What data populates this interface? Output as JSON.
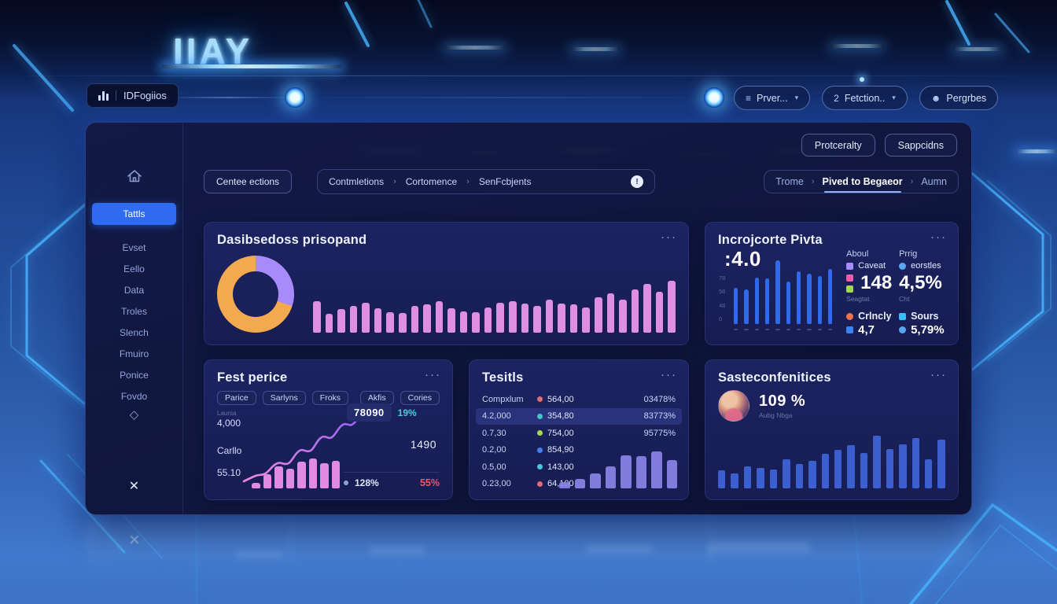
{
  "colors": {
    "accent_blue": "#2e6bf0",
    "neon_cyan": "#7fd4ff",
    "bar_pink": "#df8fe2",
    "bar_blue": "#2f6be8",
    "bar_indigo": "#3c5fd0",
    "bar_lavender": "#8b83e8",
    "donut_orange": "#f3a950",
    "donut_purple": "#a78bfa",
    "teal": "#49ccd8",
    "red": "#f0566c"
  },
  "icons": {
    "dots": "···",
    "chevron": "▾",
    "separator": "›",
    "info": "!",
    "close": "✕",
    "diamond": "◇",
    "list": "≡",
    "user": "☻",
    "num2": "2"
  },
  "scene": {
    "logo": "IIAY"
  },
  "topbar": {
    "app_button": "IDFogiios",
    "actions": [
      {
        "label": "Prver...",
        "icon": "list",
        "chevron": true
      },
      {
        "label": "Fetction..",
        "icon": "num2",
        "chevron": true
      },
      {
        "label": "Pergrbes",
        "icon": "user",
        "chevron": false
      }
    ]
  },
  "panel": {
    "header_buttons": [
      "Protceralty",
      "Sappcidns"
    ],
    "sidebar": {
      "items": [
        "Tattls",
        "Evset",
        "Eello",
        "Data",
        "Troles",
        "Slench",
        "Fmuiro",
        "Ponice",
        "Fovdo"
      ],
      "active_index": 0
    },
    "toolbar": {
      "primary_button": "Centee ections",
      "breadcrumb": [
        "Contmletions",
        "Cortomence",
        "SenFcbjents"
      ],
      "tabs": [
        "Trome",
        "Pived to Begaeor",
        "Aumn"
      ],
      "active_tab": 1
    }
  },
  "cards": {
    "main": {
      "title": "Dasibsedoss prisopand",
      "chart_data": {
        "type": "bar",
        "values": [
          40,
          24,
          30,
          34,
          38,
          31,
          26,
          25,
          34,
          36,
          40,
          31,
          27,
          26,
          32,
          38,
          40,
          37,
          34,
          42,
          37,
          36,
          32,
          45,
          50,
          42,
          55,
          62,
          52,
          66
        ],
        "bar_color": "#df8fe2",
        "donut": {
          "type": "pie",
          "segments": [
            {
              "label": "segment-orange",
              "value": 70,
              "color": "#f3a950"
            },
            {
              "label": "segment-purple",
              "value": 30,
              "color": "#a78bfa"
            }
          ]
        }
      }
    },
    "pivta": {
      "title": "Incrojcorte Pivta",
      "big_value": ":4.0",
      "chart_data": {
        "type": "bar",
        "values": [
          52,
          50,
          67,
          66,
          92,
          61,
          76,
          73,
          69,
          80
        ],
        "bar_color": "#2f6be8",
        "y_ticks": [
          "78",
          "58",
          "48",
          "0"
        ]
      },
      "stats": {
        "col1_header": "Aboul",
        "col1_legend": [
          {
            "color": "#a78bfa",
            "label": "Caveat"
          },
          {
            "color": "#ec5fa8",
            "label": ""
          },
          {
            "color": "#a3d94e",
            "label": ""
          }
        ],
        "col1_value": "148",
        "col1_sub": "Seagtat",
        "col2_header": "Prrig",
        "col2_legend_color": "#5aa7f0",
        "col2_legend": "eorstles",
        "col2_value": "4,5%",
        "col2_sub": "Cht",
        "row2": [
          {
            "marker_shape": "dot",
            "marker_color": "#f0734f",
            "label": "Crlncly",
            "value_marker_shape": "sq",
            "value_marker_color": "#3b82f6",
            "value": "4,7"
          },
          {
            "marker_shape": "sq",
            "marker_color": "#38bdf8",
            "label": "Sours",
            "value_marker_shape": "dot",
            "value_marker_color": "#5aa7f0",
            "value": "5,79%"
          }
        ]
      }
    },
    "fest": {
      "title": "Fest perice",
      "chips_left": [
        "Parice",
        "Sarlyns",
        "Froks"
      ],
      "chips_right": [
        "Akfis",
        "Cories"
      ],
      "axis_labels": {
        "tiny": "Laursa",
        "top": "4,000",
        "mid": "Carllo",
        "bottom": "55.10"
      },
      "values": {
        "boxed": "78090",
        "pct_teal": "19%",
        "mid": "1490",
        "pct_white": "128%",
        "pct_red": "55%"
      },
      "chart_data": {
        "type": "bar+line",
        "bar_values": [
          9,
          22,
          35,
          31,
          42,
          47,
          40,
          44
        ],
        "bar_color": "#e18ae4",
        "line_colors": [
          "#f08ae0",
          "#8b5cf6"
        ]
      }
    },
    "tesitls": {
      "title": "Tesitls",
      "rows": [
        {
          "label": "Compxlum",
          "dot_color": "#e06c75",
          "value": "564,00",
          "pct": "03478%",
          "highlight": false
        },
        {
          "label": "4.2,000",
          "dot_color": "#3ec6c9",
          "value": "354,80",
          "pct": "83773%",
          "highlight": true
        },
        {
          "label": "0.7,30",
          "dot_color": "#a3d94e",
          "value": "754,00",
          "pct": "95775%",
          "highlight": false
        },
        {
          "label": "0.2,00",
          "dot_color": "#4a7df0",
          "value": "854,90",
          "pct": "",
          "highlight": false
        },
        {
          "label": "0.5,00",
          "dot_color": "#45c8e0",
          "value": "143,00",
          "pct": "",
          "highlight": false
        },
        {
          "label": "0.23,00",
          "dot_color": "#e06c75",
          "value": "64,100",
          "pct": "",
          "highlight": false
        }
      ],
      "chart_data": {
        "type": "bar",
        "values": [
          10,
          15,
          24,
          36,
          54,
          52,
          60,
          46
        ],
        "bar_color": "#8b83e8"
      }
    },
    "saste": {
      "title": "Sasteconfenitices",
      "value": "109 %",
      "sub": "Aubg Nbga",
      "chart_data": {
        "type": "bar",
        "values": [
          30,
          25,
          36,
          33,
          31,
          48,
          40,
          45,
          56,
          63,
          70,
          58,
          86,
          64,
          72,
          82,
          48,
          80
        ],
        "bar_color": "#3c5fd0"
      }
    }
  }
}
